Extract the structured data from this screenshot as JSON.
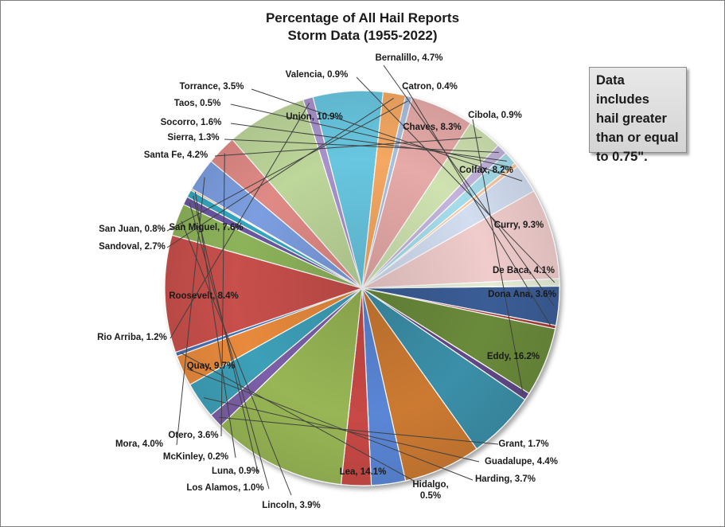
{
  "chart_data": {
    "type": "pie",
    "title_lines": [
      "Percentage of All Hail Reports",
      "Storm Data (1955-2022)"
    ],
    "unit": "%",
    "slices": [
      {
        "label": "Bernalillo",
        "value": 4.7,
        "text": "Bernalillo, 4.7%",
        "color": "#3a5d96"
      },
      {
        "label": "Catron",
        "value": 0.4,
        "text": "Catron, 0.4%",
        "color": "#a83a38"
      },
      {
        "label": "Chaves",
        "value": 8.3,
        "text": "Chaves, 8.3%",
        "color": "#6b8a3a"
      },
      {
        "label": "Cibola",
        "value": 0.9,
        "text": "Cibola, 0.9%",
        "color": "#5e4886"
      },
      {
        "label": "Colfax",
        "value": 8.2,
        "text": "Colfax, 8.2%",
        "color": "#3b8fa8"
      },
      {
        "label": "Curry",
        "value": 9.3,
        "text": "Curry, 9.3%",
        "color": "#cc7a30"
      },
      {
        "label": "De Baca",
        "value": 4.1,
        "text": "De Baca, 4.1%",
        "color": "#5a86d6"
      },
      {
        "label": "Dona Ana",
        "value": 3.6,
        "text": "Dona Ana, 3.6%",
        "color": "#c84a44"
      },
      {
        "label": "Eddy",
        "value": 16.2,
        "text": "Eddy, 16.2%",
        "color": "#98b654"
      },
      {
        "label": "Grant",
        "value": 1.7,
        "text": "Grant, 1.7%",
        "color": "#7c5ea8"
      },
      {
        "label": "Guadalupe",
        "value": 4.4,
        "text": "Guadalupe, 4.4%",
        "color": "#3da0b8"
      },
      {
        "label": "Harding",
        "value": 3.7,
        "text": "Harding, 3.7%",
        "color": "#e88a3c"
      },
      {
        "label": "Hidalgo",
        "value": 0.5,
        "text": "Hidalgo, 0.5%",
        "color": "#4a6fb0"
      },
      {
        "label": "Lea",
        "value": 14.1,
        "text": "Lea, 14.1%",
        "color": "#c8504c"
      },
      {
        "label": "Lincoln",
        "value": 3.9,
        "text": "Lincoln, 3.9%",
        "color": "#8db35a"
      },
      {
        "label": "Los Alamos",
        "value": 1.0,
        "text": "Los Alamos, 1.0%",
        "color": "#6a56a0"
      },
      {
        "label": "Luna",
        "value": 0.9,
        "text": "Luna, 0.9%",
        "color": "#36a6c0"
      },
      {
        "label": "McKinley",
        "value": 0.2,
        "text": "McKinley, 0.2%",
        "color": "#e0a060"
      },
      {
        "label": "Mora",
        "value": 4.0,
        "text": "Mora, 4.0%",
        "color": "#7c9ee0"
      },
      {
        "label": "Otero",
        "value": 3.6,
        "text": "Otero, 3.6%",
        "color": "#e08a86"
      },
      {
        "label": "Quay",
        "value": 9.7,
        "text": "Quay, 9.7%",
        "color": "#bdd69a"
      },
      {
        "label": "Rio Arriba",
        "value": 1.2,
        "text": "Rio Arriba, 1.2%",
        "color": "#a892cc"
      },
      {
        "label": "Roosevelt",
        "value": 8.4,
        "text": "Roosevelt, 8.4%",
        "color": "#68c6e0"
      },
      {
        "label": "Sandoval",
        "value": 2.7,
        "text": "Sandoval, 2.7%",
        "color": "#f4a862"
      },
      {
        "label": "San Juan",
        "value": 0.8,
        "text": "San Juan, 0.8%",
        "color": "#a8bede"
      },
      {
        "label": "San Miguel",
        "value": 7.6,
        "text": "San Miguel, 7.6%",
        "color": "#e6aaa8"
      },
      {
        "label": "Santa Fe",
        "value": 4.2,
        "text": "Santa Fe, 4.2%",
        "color": "#cfe2b0"
      },
      {
        "label": "Sierra",
        "value": 1.3,
        "text": "Sierra, 1.3%",
        "color": "#c2b4dc"
      },
      {
        "label": "Socorro",
        "value": 1.6,
        "text": "Socorro, 1.6%",
        "color": "#a6dcea"
      },
      {
        "label": "Taos",
        "value": 0.5,
        "text": "Taos, 0.5%",
        "color": "#f8c8a0"
      },
      {
        "label": "Torrance",
        "value": 3.5,
        "text": "Torrance, 3.5%",
        "color": "#d2ddf0"
      },
      {
        "label": "Union",
        "value": 10.9,
        "text": "Union, 10.9%",
        "color": "#f0cccc"
      },
      {
        "label": "Valencia",
        "value": 0.9,
        "text": "Valencia, 0.9%",
        "color": "#e4ecd6"
      }
    ],
    "note_lines": [
      "Data includes",
      "hail greater",
      "than or equal",
      "to 0.75\"."
    ]
  }
}
